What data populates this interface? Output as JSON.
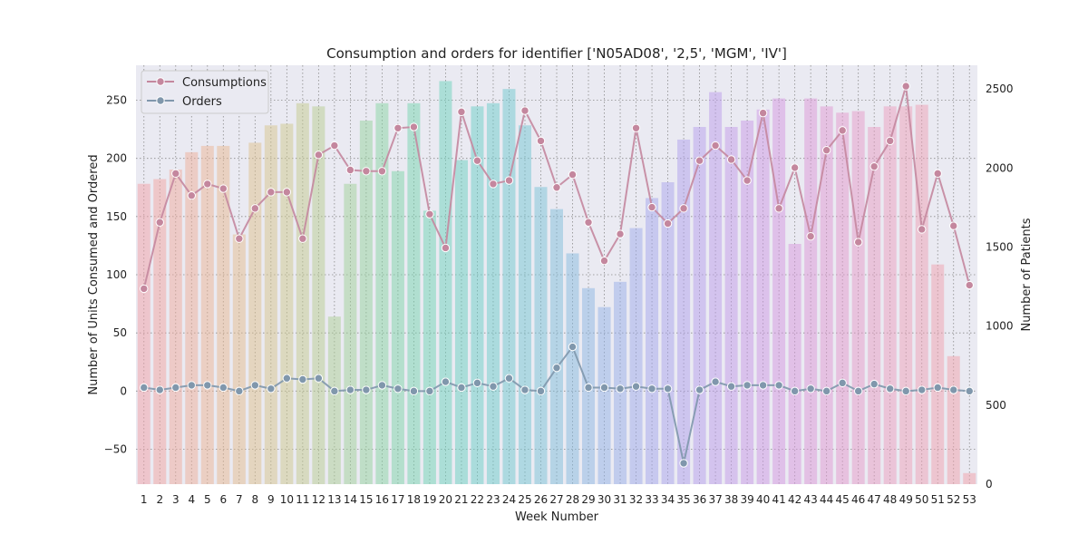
{
  "chart_data": {
    "type": "bar",
    "title": "Consumption and orders for identifier ['N05AD08', '2,5', 'MGM', 'IV']",
    "xlabel": "Week Number",
    "ylabel_left": "Number of Units Consumed and Ordered",
    "ylabel_right": "Number of Patients",
    "categories": [
      "1",
      "2",
      "3",
      "4",
      "5",
      "6",
      "7",
      "8",
      "9",
      "10",
      "11",
      "12",
      "13",
      "14",
      "15",
      "16",
      "17",
      "18",
      "19",
      "20",
      "21",
      "22",
      "23",
      "24",
      "25",
      "26",
      "27",
      "28",
      "29",
      "30",
      "31",
      "32",
      "33",
      "34",
      "35",
      "36",
      "37",
      "38",
      "39",
      "40",
      "41",
      "42",
      "43",
      "44",
      "45",
      "46",
      "47",
      "48",
      "49",
      "50",
      "51",
      "52",
      "53"
    ],
    "ylim_left": [
      -80,
      280
    ],
    "yticks_left": [
      -50,
      0,
      50,
      100,
      150,
      200,
      250
    ],
    "ylim_right": [
      0,
      2650
    ],
    "yticks_right": [
      0,
      500,
      1000,
      1500,
      2000,
      2500
    ],
    "grid": true,
    "legend_position": "top-left",
    "bars": {
      "name": "Number of Patients",
      "axis": "right",
      "values": [
        1900,
        1930,
        1990,
        2100,
        2140,
        2140,
        1580,
        2160,
        2270,
        2280,
        2410,
        2390,
        1060,
        1900,
        2300,
        2410,
        1980,
        2410,
        1730,
        2550,
        2050,
        2390,
        2410,
        2500,
        2270,
        1880,
        1740,
        1460,
        1240,
        1120,
        1280,
        1620,
        1810,
        1910,
        2180,
        2260,
        2480,
        2260,
        2300,
        2370,
        2440,
        1520,
        2440,
        2390,
        2350,
        2360,
        2260,
        2390,
        2390,
        2400,
        1390,
        810,
        70
      ],
      "colors": [
        "#f2a0a6",
        "#f2a4a0",
        "#f0a99c",
        "#eeae98",
        "#ebb394",
        "#e8b890",
        "#e4bc8e",
        "#ddc08c",
        "#d6c38c",
        "#cdc78c",
        "#c3c98e",
        "#b8cc90",
        "#acce94",
        "#a0d098",
        "#94d29c",
        "#88d3a2",
        "#7ed4a8",
        "#76d4ae",
        "#70d3b4",
        "#6cd2bb",
        "#6ad0c0",
        "#6acec5",
        "#6ccbca",
        "#70c8ce",
        "#74c5d2",
        "#7ac1d6",
        "#80bdda",
        "#86b9de",
        "#8cb5e2",
        "#92b1e6",
        "#98ade8",
        "#9eaaea",
        "#a4a6ec",
        "#aaa3ec",
        "#b0a0ec",
        "#b69eeb",
        "#bc9cea",
        "#c29ae8",
        "#c898e6",
        "#ce97e3",
        "#d396df",
        "#d896db",
        "#dc96d6",
        "#e097d1",
        "#e398cc",
        "#e69ac7",
        "#e89cc2",
        "#eb9ebd",
        "#ed9fb8",
        "#eea0b3",
        "#efa0ae",
        "#f0a0aa",
        "#f1a0a7"
      ]
    },
    "series": [
      {
        "name": "Consumptions",
        "axis": "left",
        "color": "#c4879e",
        "values": [
          88,
          145,
          187,
          168,
          178,
          174,
          131,
          157,
          171,
          171,
          131,
          203,
          211,
          190,
          189,
          189,
          226,
          227,
          152,
          123,
          240,
          198,
          178,
          181,
          241,
          215,
          175,
          186,
          145,
          112,
          135,
          226,
          158,
          144,
          157,
          198,
          211,
          199,
          181,
          239,
          157,
          192,
          133,
          207,
          224,
          128,
          193,
          215,
          262,
          139,
          187,
          142,
          91
        ]
      },
      {
        "name": "Orders",
        "axis": "left",
        "color": "#8097ac",
        "values": [
          3,
          1,
          3,
          5,
          5,
          3,
          0,
          5,
          2,
          11,
          10,
          11,
          0,
          1,
          1,
          5,
          2,
          0,
          0,
          8,
          3,
          7,
          4,
          11,
          1,
          0,
          20,
          38,
          3,
          3,
          2,
          4,
          2,
          2,
          -62,
          1,
          8,
          4,
          5,
          5,
          5,
          0,
          2,
          0,
          7,
          0,
          6,
          2,
          0,
          1,
          3,
          1,
          0
        ]
      }
    ]
  }
}
